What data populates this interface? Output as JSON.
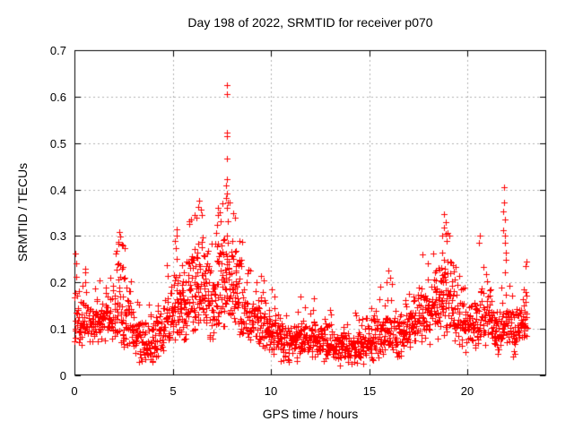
{
  "figure": {
    "background": "#ffffff",
    "text_color": "#000000"
  },
  "chart_data": {
    "type": "scatter",
    "title": "Day 198 of 2022, SRMTID for receiver p070",
    "xlabel": "GPS time / hours",
    "ylabel": "SRMTID / TECUs",
    "xlim": [
      0,
      24
    ],
    "ylim": [
      0,
      0.7
    ],
    "xticks": {
      "values": [
        0,
        5,
        10,
        15,
        20
      ],
      "labels": [
        "0",
        "5",
        "10",
        "15",
        "20"
      ]
    },
    "yticks": {
      "values": [
        0,
        0.1,
        0.2,
        0.3,
        0.4,
        0.5,
        0.6,
        0.7
      ],
      "labels": [
        "0",
        "0.1",
        "0.2",
        "0.3",
        "0.4",
        "0.5",
        "0.6",
        "0.7"
      ]
    },
    "grid": true,
    "grid_style": "dashed",
    "legend": false,
    "marker": "plus",
    "marker_size_px": 7,
    "marker_color": "#ff0000",
    "grid_color": "#b0b0b0",
    "axis_color": "#000000",
    "representation": "band_envelope_plus_outliers",
    "t_start": 0,
    "t_end": 23.05,
    "bin_hours": 0.05,
    "points_per_bin": 4,
    "seed": 198,
    "band_profile": [
      [
        0.0,
        0.07,
        0.21
      ],
      [
        0.3,
        0.08,
        0.18
      ],
      [
        0.6,
        0.08,
        0.2
      ],
      [
        1.0,
        0.08,
        0.17
      ],
      [
        1.5,
        0.09,
        0.19
      ],
      [
        2.0,
        0.08,
        0.22
      ],
      [
        2.3,
        0.08,
        0.29
      ],
      [
        2.7,
        0.07,
        0.24
      ],
      [
        3.0,
        0.05,
        0.16
      ],
      [
        3.5,
        0.04,
        0.14
      ],
      [
        4.0,
        0.04,
        0.15
      ],
      [
        4.5,
        0.06,
        0.18
      ],
      [
        4.9,
        0.08,
        0.22
      ],
      [
        5.2,
        0.09,
        0.29
      ],
      [
        5.5,
        0.08,
        0.26
      ],
      [
        5.8,
        0.1,
        0.31
      ],
      [
        6.1,
        0.11,
        0.34
      ],
      [
        6.4,
        0.11,
        0.36
      ],
      [
        6.7,
        0.1,
        0.33
      ],
      [
        7.0,
        0.09,
        0.31
      ],
      [
        7.3,
        0.1,
        0.34
      ],
      [
        7.6,
        0.12,
        0.37
      ],
      [
        7.8,
        0.12,
        0.38
      ],
      [
        8.1,
        0.11,
        0.34
      ],
      [
        8.4,
        0.1,
        0.3
      ],
      [
        8.7,
        0.09,
        0.24
      ],
      [
        9.1,
        0.08,
        0.19
      ],
      [
        9.5,
        0.07,
        0.2
      ],
      [
        9.9,
        0.06,
        0.17
      ],
      [
        10.3,
        0.05,
        0.16
      ],
      [
        10.7,
        0.04,
        0.12
      ],
      [
        11.1,
        0.05,
        0.12
      ],
      [
        11.5,
        0.05,
        0.15
      ],
      [
        11.9,
        0.05,
        0.12
      ],
      [
        12.4,
        0.05,
        0.13
      ],
      [
        12.9,
        0.04,
        0.12
      ],
      [
        13.4,
        0.03,
        0.11
      ],
      [
        13.9,
        0.04,
        0.11
      ],
      [
        14.4,
        0.03,
        0.11
      ],
      [
        14.9,
        0.04,
        0.12
      ],
      [
        15.4,
        0.05,
        0.15
      ],
      [
        15.7,
        0.06,
        0.17
      ],
      [
        16.0,
        0.06,
        0.19
      ],
      [
        16.4,
        0.05,
        0.15
      ],
      [
        16.8,
        0.06,
        0.15
      ],
      [
        17.2,
        0.07,
        0.17
      ],
      [
        17.6,
        0.08,
        0.21
      ],
      [
        18.0,
        0.08,
        0.24
      ],
      [
        18.4,
        0.09,
        0.28
      ],
      [
        18.8,
        0.1,
        0.31
      ],
      [
        19.1,
        0.1,
        0.28
      ],
      [
        19.4,
        0.08,
        0.23
      ],
      [
        19.8,
        0.07,
        0.17
      ],
      [
        20.2,
        0.07,
        0.17
      ],
      [
        20.6,
        0.08,
        0.21
      ],
      [
        21.0,
        0.08,
        0.23
      ],
      [
        21.3,
        0.06,
        0.19
      ],
      [
        21.6,
        0.05,
        0.14
      ],
      [
        21.9,
        0.07,
        0.22
      ],
      [
        22.1,
        0.06,
        0.18
      ],
      [
        22.4,
        0.05,
        0.15
      ],
      [
        22.7,
        0.07,
        0.17
      ],
      [
        23.0,
        0.09,
        0.22
      ],
      [
        23.05,
        0.1,
        0.23
      ]
    ],
    "outliers": [
      [
        0.05,
        0.262
      ],
      [
        0.1,
        0.242
      ],
      [
        0.54,
        0.23
      ],
      [
        0.57,
        0.222
      ],
      [
        1.3,
        0.205
      ],
      [
        2.1,
        0.262
      ],
      [
        2.28,
        0.308
      ],
      [
        2.34,
        0.298
      ],
      [
        2.25,
        0.288
      ],
      [
        2.4,
        0.282
      ],
      [
        3.9,
        0.034
      ],
      [
        4.15,
        0.04
      ],
      [
        4.72,
        0.238
      ],
      [
        5.12,
        0.29
      ],
      [
        5.18,
        0.315
      ],
      [
        5.22,
        0.3
      ],
      [
        5.85,
        0.325
      ],
      [
        5.92,
        0.335
      ],
      [
        6.1,
        0.345
      ],
      [
        6.2,
        0.34
      ],
      [
        6.28,
        0.362
      ],
      [
        6.33,
        0.376
      ],
      [
        6.42,
        0.356
      ],
      [
        6.5,
        0.345
      ],
      [
        7.28,
        0.345
      ],
      [
        7.32,
        0.36
      ],
      [
        7.71,
        0.381
      ],
      [
        7.73,
        0.408
      ],
      [
        7.74,
        0.522
      ],
      [
        7.75,
        0.467
      ],
      [
        7.75,
        0.36
      ],
      [
        7.76,
        0.625
      ],
      [
        7.76,
        0.605
      ],
      [
        7.76,
        0.422
      ],
      [
        7.77,
        0.515
      ],
      [
        7.77,
        0.392
      ],
      [
        7.79,
        0.372
      ],
      [
        8.08,
        0.35
      ],
      [
        8.15,
        0.34
      ],
      [
        8.95,
        0.225
      ],
      [
        9.62,
        0.205
      ],
      [
        10.05,
        0.185
      ],
      [
        10.5,
        0.03
      ],
      [
        10.9,
        0.028
      ],
      [
        11.3,
        0.03
      ],
      [
        11.5,
        0.17
      ],
      [
        12.2,
        0.165
      ],
      [
        12.7,
        0.03
      ],
      [
        13.0,
        0.14
      ],
      [
        13.5,
        0.022
      ],
      [
        13.9,
        0.028
      ],
      [
        14.3,
        0.135
      ],
      [
        14.7,
        0.026
      ],
      [
        15.1,
        0.145
      ],
      [
        15.2,
        0.032
      ],
      [
        15.55,
        0.19
      ],
      [
        15.98,
        0.225
      ],
      [
        16.05,
        0.21
      ],
      [
        16.6,
        0.042
      ],
      [
        17.0,
        0.175
      ],
      [
        17.7,
        0.26
      ],
      [
        18.72,
        0.3
      ],
      [
        18.78,
        0.318
      ],
      [
        18.82,
        0.347
      ],
      [
        18.87,
        0.33
      ],
      [
        18.9,
        0.305
      ],
      [
        18.95,
        0.29
      ],
      [
        19.9,
        0.05
      ],
      [
        20.58,
        0.285
      ],
      [
        20.62,
        0.3
      ],
      [
        21.55,
        0.046
      ],
      [
        21.8,
        0.312
      ],
      [
        21.83,
        0.352
      ],
      [
        21.84,
        0.405
      ],
      [
        21.86,
        0.372
      ],
      [
        21.88,
        0.335
      ],
      [
        21.9,
        0.3
      ],
      [
        21.92,
        0.285
      ],
      [
        21.94,
        0.265
      ],
      [
        21.96,
        0.248
      ],
      [
        22.3,
        0.04
      ],
      [
        22.97,
        0.235
      ],
      [
        23.0,
        0.245
      ]
    ]
  }
}
